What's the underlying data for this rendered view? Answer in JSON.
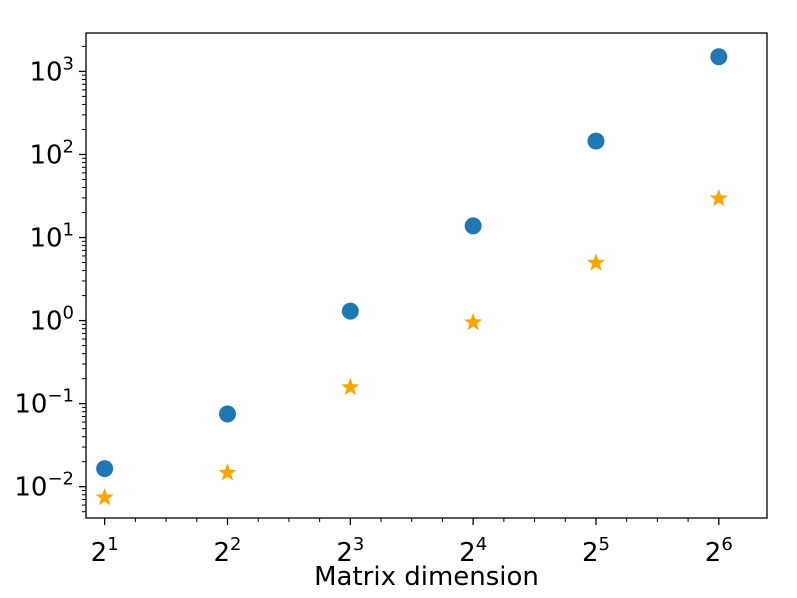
{
  "chart_data": {
    "type": "scatter",
    "title": "",
    "xlabel": "Matrix dimension",
    "ylabel": "",
    "xscale": "log2",
    "yscale": "log10",
    "xlim": [
      1.8,
      84
    ],
    "ylim": [
      0.0042,
      2900
    ],
    "x": [
      2,
      4,
      8,
      16,
      32,
      64
    ],
    "x_ticks": [
      {
        "value": 2,
        "base": "2",
        "exp": "1"
      },
      {
        "value": 4,
        "base": "2",
        "exp": "2"
      },
      {
        "value": 8,
        "base": "2",
        "exp": "3"
      },
      {
        "value": 16,
        "base": "2",
        "exp": "4"
      },
      {
        "value": 32,
        "base": "2",
        "exp": "5"
      },
      {
        "value": 64,
        "base": "2",
        "exp": "6"
      }
    ],
    "y_ticks": [
      {
        "value": 0.01,
        "base": "10",
        "exp": "−2"
      },
      {
        "value": 0.1,
        "base": "10",
        "exp": "−1"
      },
      {
        "value": 1,
        "base": "10",
        "exp": "0"
      },
      {
        "value": 10,
        "base": "10",
        "exp": "1"
      },
      {
        "value": 100,
        "base": "10",
        "exp": "2"
      },
      {
        "value": 1000,
        "base": "10",
        "exp": "3"
      }
    ],
    "grid": false,
    "legend": "none",
    "series": [
      {
        "marker": "circle",
        "color": "#1f77b4",
        "values": [
          0.0165,
          0.075,
          1.3,
          13.8,
          145,
          1500
        ]
      },
      {
        "marker": "star",
        "color": "#ffa500",
        "values": [
          0.0074,
          0.0147,
          0.157,
          0.95,
          4.95,
          29.5
        ]
      }
    ]
  }
}
